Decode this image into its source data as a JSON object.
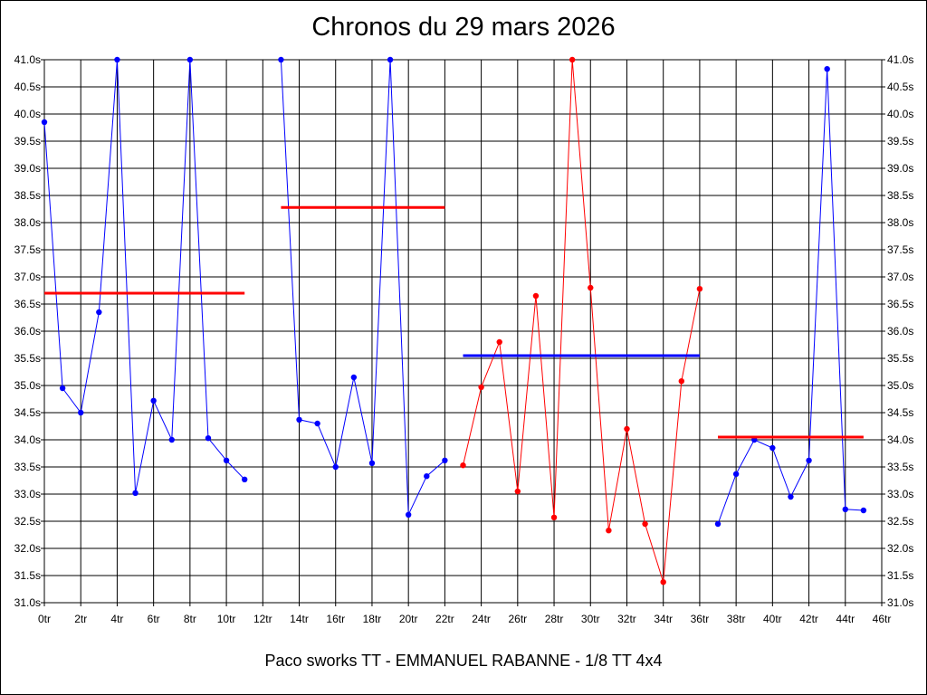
{
  "chart_data": {
    "type": "line",
    "title": "Chronos du 29 mars 2026",
    "footer": "Paco sworks TT - EMMANUEL RABANNE - 1/8 TT 4x4",
    "xlabel": "",
    "ylabel": "",
    "xlim": [
      0,
      46
    ],
    "ylim": [
      31.0,
      41.0
    ],
    "grid": true,
    "x_ticks": [
      "0tr",
      "2tr",
      "4tr",
      "6tr",
      "8tr",
      "10tr",
      "12tr",
      "14tr",
      "16tr",
      "18tr",
      "20tr",
      "22tr",
      "24tr",
      "26tr",
      "28tr",
      "30tr",
      "32tr",
      "34tr",
      "36tr",
      "38tr",
      "40tr",
      "42tr",
      "44tr",
      "46tr"
    ],
    "y_ticks": [
      "31.0s",
      "31.5s",
      "32.0s",
      "32.5s",
      "33.0s",
      "33.5s",
      "34.0s",
      "34.5s",
      "35.0s",
      "35.5s",
      "36.0s",
      "36.5s",
      "37.0s",
      "37.5s",
      "38.0s",
      "38.5s",
      "39.0s",
      "39.5s",
      "40.0s",
      "40.5s",
      "41.0s"
    ],
    "series": [
      {
        "color": "#0000ff",
        "points": [
          [
            0,
            39.85
          ],
          [
            1,
            34.95
          ],
          [
            2,
            34.5
          ],
          [
            3,
            36.35
          ],
          [
            4,
            41.0
          ],
          [
            5,
            33.02
          ],
          [
            6,
            34.72
          ],
          [
            7,
            34.0
          ],
          [
            8,
            41.0
          ],
          [
            9,
            34.03
          ],
          [
            10,
            33.62
          ],
          [
            11,
            33.27
          ]
        ]
      },
      {
        "color": "#0000ff",
        "points": [
          [
            13,
            41.0
          ],
          [
            14,
            34.37
          ],
          [
            15,
            34.3
          ],
          [
            16,
            33.5
          ],
          [
            17,
            35.15
          ],
          [
            18,
            33.57
          ],
          [
            19,
            41.0
          ],
          [
            20,
            32.62
          ],
          [
            21,
            33.33
          ],
          [
            22,
            33.62
          ]
        ]
      },
      {
        "color": "#ff0000",
        "points": [
          [
            23,
            33.53
          ],
          [
            24,
            34.97
          ],
          [
            25,
            35.8
          ],
          [
            26,
            33.05
          ],
          [
            27,
            36.65
          ],
          [
            28,
            32.57
          ],
          [
            29,
            41.0
          ],
          [
            30,
            36.8
          ],
          [
            31,
            32.33
          ],
          [
            32,
            34.2
          ],
          [
            33,
            32.45
          ],
          [
            34,
            31.38
          ],
          [
            35,
            35.08
          ],
          [
            36,
            36.78
          ]
        ]
      },
      {
        "color": "#0000ff",
        "points": [
          [
            37,
            32.45
          ],
          [
            38,
            33.37
          ],
          [
            39,
            34.0
          ],
          [
            40,
            33.85
          ],
          [
            41,
            32.95
          ],
          [
            42,
            33.62
          ],
          [
            43,
            40.83
          ],
          [
            44,
            32.72
          ],
          [
            45,
            32.7
          ]
        ]
      }
    ],
    "averages": [
      {
        "color": "#ff0000",
        "x_start": 0,
        "x_end": 11,
        "value": 36.7
      },
      {
        "color": "#ff0000",
        "x_start": 13,
        "x_end": 22,
        "value": 38.28
      },
      {
        "color": "#0000ff",
        "x_start": 23,
        "x_end": 36,
        "value": 35.55
      },
      {
        "color": "#ff0000",
        "x_start": 37,
        "x_end": 45,
        "value": 34.05
      }
    ]
  }
}
